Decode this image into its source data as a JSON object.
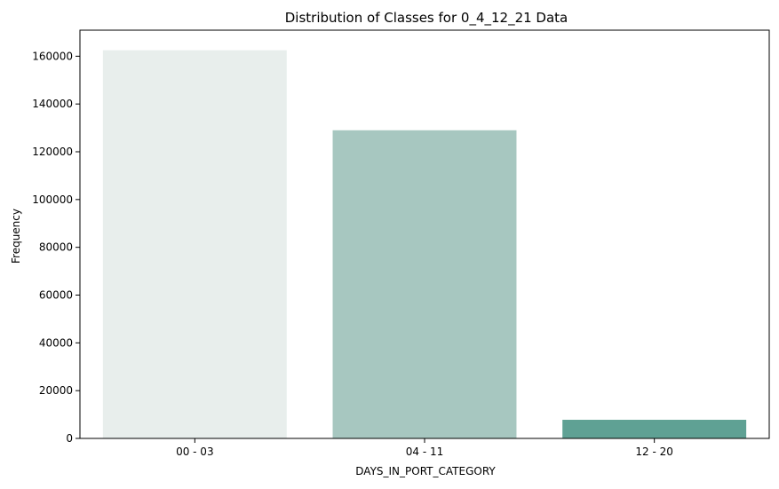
{
  "chart_data": {
    "type": "bar",
    "title": "Distribution of Classes for 0_4_12_21 Data",
    "xlabel": "DAYS_IN_PORT_CATEGORY",
    "ylabel": "Frequency",
    "categories": [
      "00 - 03",
      "04 - 11",
      "12 - 20"
    ],
    "values": [
      162500,
      129000,
      7800
    ],
    "ylim": [
      0,
      170900
    ],
    "yticks": [
      0,
      20000,
      40000,
      60000,
      80000,
      100000,
      120000,
      140000,
      160000
    ],
    "ytick_labels": [
      "0",
      "20000",
      "40000",
      "60000",
      "80000",
      "100000",
      "120000",
      "140000",
      "160000"
    ],
    "colors": [
      "#e8eeec",
      "#a7c7c0",
      "#5fa194"
    ],
    "grid": false,
    "legend": "none"
  }
}
